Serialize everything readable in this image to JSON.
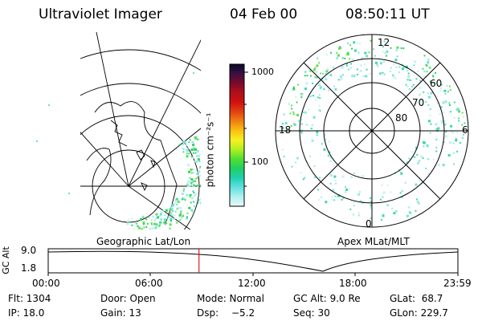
{
  "header": {
    "instrument": "Ultraviolet Imager",
    "date": "04 Feb 00",
    "time": "08:50:11 UT"
  },
  "colorbar": {
    "unit_label": "photon cm⁻²s⁻¹",
    "tick_labels": [
      "1000",
      "100"
    ],
    "stops": [
      "#0a0a2a",
      "#3a1040",
      "#7a0a2a",
      "#b0101a",
      "#d01010",
      "#e04010",
      "#f08010",
      "#f8c010",
      "#f8f020",
      "#b0f020",
      "#50e030",
      "#20d060",
      "#20d0b0",
      "#60e0e0",
      "#b0f0f0",
      "#e8f8f8"
    ]
  },
  "left_panel": {
    "caption": "Geographic Lat/Lon"
  },
  "right_panel": {
    "caption": "Apex MLat/MLT",
    "mlt_labels": {
      "top": "12",
      "left": "18",
      "right": "6",
      "bottom": "0"
    },
    "lat_labels": [
      "60",
      "70",
      "80"
    ]
  },
  "orbit": {
    "y_axis_label": "GC Alt",
    "y_ticks": [
      "9.0",
      "1.8"
    ],
    "x_ticks": [
      "00:00",
      "06:00",
      "12:00",
      "18:00",
      "23:59"
    ],
    "current_time_fraction": 0.368
  },
  "info": {
    "flt": "Flt: 1304",
    "ip": "IP: 18.0",
    "door": "Door: Open",
    "gain": "Gain: 13",
    "mode": "Mode: Normal",
    "dsp_label": "Dsp:",
    "dsp_value": "−5.2",
    "gc_alt": "GC Alt: 9.0 Re",
    "seq": "Seq: 30",
    "glat": "GLat:  68.7",
    "glon": "GLon: 229.7"
  }
}
